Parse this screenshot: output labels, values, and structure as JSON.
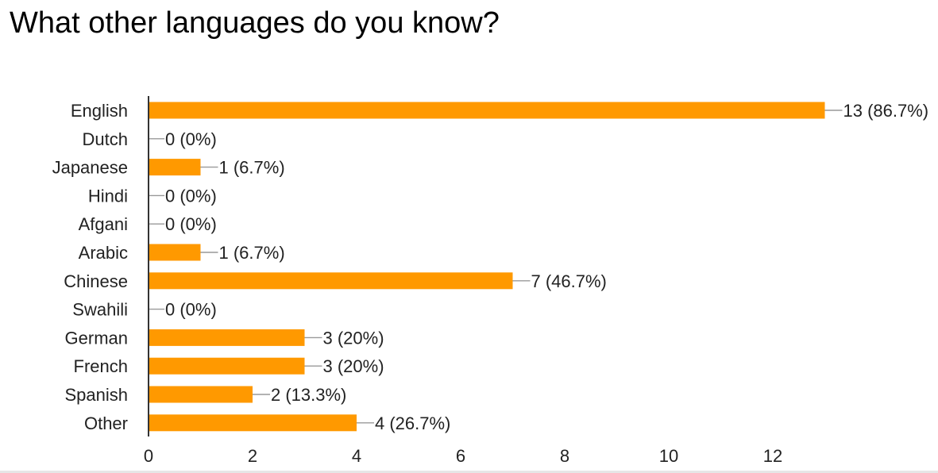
{
  "chart_data": {
    "type": "bar",
    "orientation": "horizontal",
    "title": "What other languages do you know?",
    "categories": [
      "English",
      "Dutch",
      "Japanese",
      "Hindi",
      "Afgani",
      "Arabic",
      "Chinese",
      "Swahili",
      "German",
      "French",
      "Spanish",
      "Other"
    ],
    "values": [
      13,
      0,
      1,
      0,
      0,
      1,
      7,
      0,
      3,
      3,
      2,
      4
    ],
    "data_labels": [
      "13 (86.7%)",
      "0 (0%)",
      "1 (6.7%)",
      "0 (0%)",
      "0 (0%)",
      "1 (6.7%)",
      "7 (46.7%)",
      "0 (0%)",
      "3 (20%)",
      "3 (20%)",
      "2 (13.3%)",
      "4 (26.7%)"
    ],
    "xticks": [
      0,
      2,
      4,
      6,
      8,
      10,
      12
    ],
    "xlim": [
      0,
      13
    ],
    "xlabel": "",
    "ylabel": "",
    "grid": false,
    "legend": "none",
    "colors": {
      "bar": "#ff9900",
      "axis": "#333333",
      "text": "#222222",
      "leader": "#999999"
    }
  }
}
